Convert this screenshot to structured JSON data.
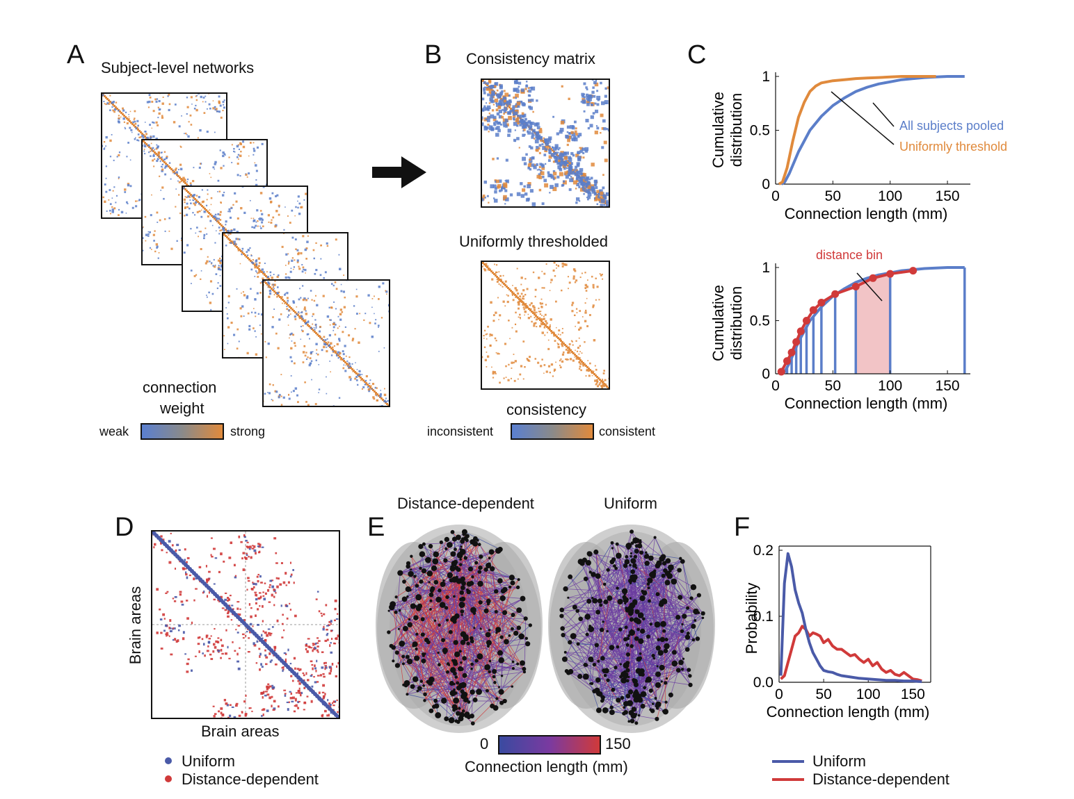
{
  "panel_labels": {
    "a": "A",
    "b": "B",
    "c": "C",
    "d": "D",
    "e": "E",
    "f": "F"
  },
  "panel_a": {
    "title": "Subject-level networks",
    "colorbar_title_line1": "connection",
    "colorbar_title_line2": "weight",
    "colorbar_min": "weak",
    "colorbar_max": "strong"
  },
  "panel_b": {
    "title_top": "Consistency matrix",
    "title_bottom": "Uniformly thresholded",
    "colorbar_title": "consistency",
    "colorbar_min": "inconsistent",
    "colorbar_max": "consistent"
  },
  "colors": {
    "blue": "#5b7ec9",
    "orange": "#e08a3c",
    "red": "#d03a3a",
    "navy": "#4a5aa8",
    "pink": "#f2c4c6"
  },
  "panel_d": {
    "xlabel": "Brain areas",
    "ylabel": "Brain areas",
    "legend_uniform": "Uniform",
    "legend_distance": "Distance-dependent"
  },
  "panel_e": {
    "title_left": "Distance-dependent",
    "title_right": "Uniform",
    "colorbar_min": "0",
    "colorbar_max": "150",
    "colorbar_label": "Connection length (mm)"
  },
  "chart_data": [
    {
      "type": "line",
      "id": "C-top",
      "xlabel": "Connection length (mm)",
      "ylabel_line1": "Cumulative",
      "ylabel_line2": "distribution",
      "xlim": [
        0,
        170
      ],
      "ylim": [
        0,
        1
      ],
      "xticks": [
        "0",
        "50",
        "100",
        "150"
      ],
      "yticks": [
        "0",
        "0.5",
        "1"
      ],
      "annotations": [
        "All subjects pooled",
        "Uniformly threshold"
      ],
      "series": [
        {
          "name": "All subjects pooled",
          "x": [
            5,
            8,
            12,
            20,
            30,
            40,
            50,
            60,
            70,
            80,
            90,
            100,
            110,
            120,
            130,
            140,
            150,
            160,
            165
          ],
          "y": [
            0,
            0.02,
            0.1,
            0.3,
            0.5,
            0.63,
            0.73,
            0.8,
            0.86,
            0.9,
            0.93,
            0.95,
            0.97,
            0.98,
            0.99,
            0.995,
            1,
            1,
            1
          ]
        },
        {
          "name": "Uniformly threshold",
          "x": [
            3,
            6,
            10,
            15,
            20,
            25,
            30,
            35,
            40,
            50,
            60,
            70,
            80,
            90,
            100,
            110,
            120,
            130,
            140
          ],
          "y": [
            0,
            0.02,
            0.15,
            0.4,
            0.62,
            0.76,
            0.86,
            0.91,
            0.94,
            0.96,
            0.97,
            0.98,
            0.985,
            0.99,
            0.995,
            1,
            1,
            1,
            1
          ]
        }
      ]
    },
    {
      "type": "line",
      "id": "C-bottom",
      "xlabel": "Connection length (mm)",
      "ylabel_line1": "Cumulative",
      "ylabel_line2": "distribution",
      "xlim": [
        0,
        170
      ],
      "ylim": [
        0,
        1
      ],
      "xticks": [
        "0",
        "50",
        "100",
        "150"
      ],
      "yticks": [
        "0",
        "0.5",
        "1"
      ],
      "annotation": "distance bin",
      "bin_edges": [
        10,
        14,
        18,
        22,
        27,
        33,
        40,
        52,
        70,
        100,
        165
      ],
      "highlight_bin": [
        70,
        100
      ],
      "series": [
        {
          "name": "",
          "x": [
            5,
            8,
            12,
            20,
            30,
            40,
            50,
            60,
            70,
            80,
            90,
            100,
            110,
            120,
            130,
            140,
            150,
            160,
            165
          ],
          "y": [
            0,
            0.02,
            0.1,
            0.3,
            0.5,
            0.63,
            0.73,
            0.8,
            0.86,
            0.9,
            0.93,
            0.95,
            0.97,
            0.98,
            0.99,
            0.995,
            1,
            1,
            1
          ]
        }
      ],
      "points": {
        "x": [
          5,
          10,
          14,
          18,
          22,
          27,
          33,
          40,
          52,
          70,
          85,
          100,
          120
        ],
        "y": [
          0.02,
          0.12,
          0.2,
          0.3,
          0.4,
          0.5,
          0.6,
          0.67,
          0.75,
          0.82,
          0.9,
          0.94,
          0.97
        ]
      }
    },
    {
      "type": "line",
      "id": "F",
      "xlabel": "Connection length (mm)",
      "ylabel": "Probability",
      "xlim": [
        0,
        170
      ],
      "ylim": [
        0,
        0.2
      ],
      "xticks": [
        "0",
        "50",
        "100",
        "150"
      ],
      "yticks": [
        "0.0",
        "0.1",
        "0.2"
      ],
      "legend": [
        "Uniform",
        "Distance-dependent"
      ],
      "series": [
        {
          "name": "Uniform",
          "x": [
            2,
            6,
            10,
            14,
            18,
            22,
            26,
            30,
            34,
            38,
            42,
            46,
            50,
            55,
            60,
            65,
            70,
            80,
            90,
            100,
            110,
            120,
            130,
            140,
            150,
            160
          ],
          "y": [
            0.01,
            0.15,
            0.195,
            0.175,
            0.14,
            0.12,
            0.105,
            0.08,
            0.06,
            0.045,
            0.035,
            0.025,
            0.018,
            0.016,
            0.015,
            0.012,
            0.01,
            0.008,
            0.006,
            0.005,
            0.004,
            0.003,
            0.003,
            0.002,
            0.002,
            0.001
          ]
        },
        {
          "name": "Distance-dependent",
          "x": [
            2,
            6,
            10,
            14,
            18,
            22,
            26,
            30,
            34,
            38,
            42,
            46,
            50,
            55,
            60,
            65,
            70,
            75,
            80,
            85,
            90,
            95,
            100,
            105,
            110,
            115,
            120,
            125,
            130,
            135,
            140,
            145,
            150,
            155,
            160
          ],
          "y": [
            0.005,
            0.01,
            0.03,
            0.05,
            0.07,
            0.075,
            0.085,
            0.08,
            0.07,
            0.075,
            0.073,
            0.07,
            0.06,
            0.065,
            0.055,
            0.05,
            0.05,
            0.045,
            0.04,
            0.042,
            0.035,
            0.03,
            0.035,
            0.025,
            0.03,
            0.02,
            0.015,
            0.018,
            0.012,
            0.01,
            0.015,
            0.01,
            0.005,
            0.004,
            0.002
          ]
        }
      ]
    }
  ]
}
